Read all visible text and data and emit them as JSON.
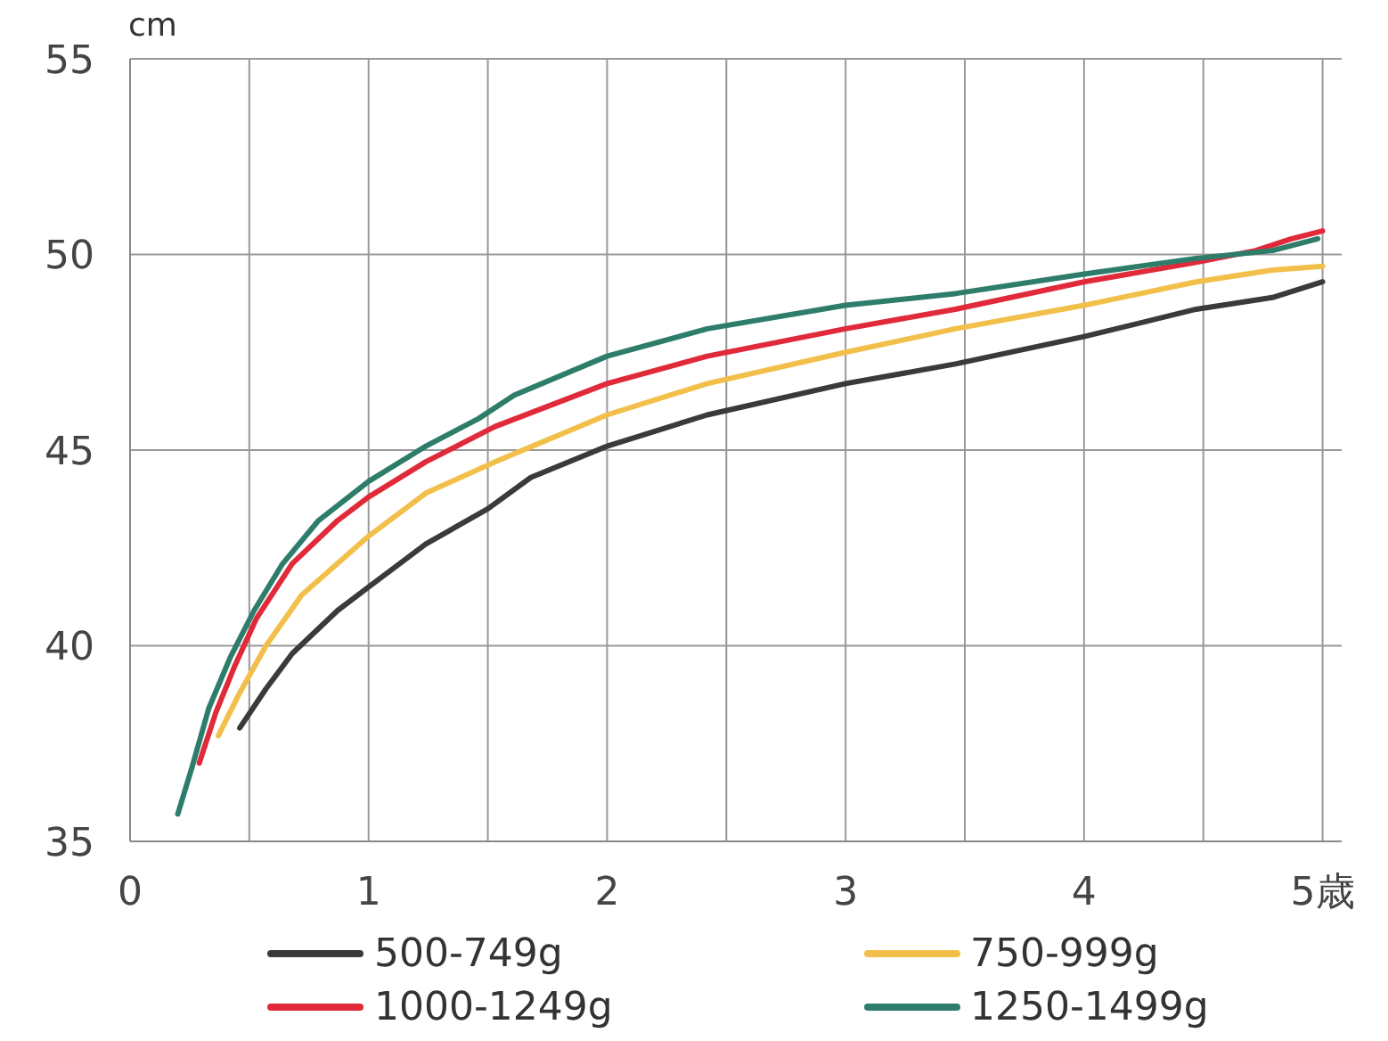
{
  "chart_data": {
    "type": "line",
    "ylabel": "cm",
    "xlim": [
      0,
      5.08
    ],
    "ylim": [
      35,
      55
    ],
    "xticks": [
      0,
      {
        "value": 0.5,
        "label": null
      },
      1,
      {
        "value": 1.5,
        "label": null
      },
      2,
      {
        "value": 2.5,
        "label": null
      },
      3,
      {
        "value": 3.5,
        "label": null
      },
      4,
      {
        "value": 4.5,
        "label": null
      },
      {
        "value": 5,
        "label": "5歳"
      }
    ],
    "yticks": [
      35,
      40,
      45,
      50,
      55
    ],
    "grid": true,
    "legend": "bottom",
    "marker": "none",
    "line_style": "solid",
    "series": [
      {
        "name": "500-749g",
        "color": "#3a3a3a",
        "x": [
          0.46,
          0.57,
          0.68,
          0.87,
          1.0,
          1.24,
          1.5,
          1.68,
          2.0,
          2.42,
          3.0,
          3.46,
          4.0,
          4.47,
          4.79,
          5.0
        ],
        "values": [
          37.9,
          38.9,
          39.8,
          40.9,
          41.5,
          42.6,
          43.5,
          44.3,
          45.1,
          45.9,
          46.7,
          47.2,
          47.9,
          48.6,
          48.9,
          49.3
        ]
      },
      {
        "name": "750-999g",
        "color": "#f2c04a",
        "x": [
          0.37,
          0.46,
          0.57,
          0.72,
          1.0,
          1.24,
          1.53,
          2.0,
          2.42,
          3.0,
          3.46,
          4.0,
          4.47,
          4.79,
          5.0
        ],
        "values": [
          37.7,
          38.8,
          40.0,
          41.3,
          42.8,
          43.9,
          44.7,
          45.9,
          46.7,
          47.5,
          48.1,
          48.7,
          49.3,
          49.6,
          49.7
        ]
      },
      {
        "name": "1000-1249g",
        "color": "#e02a3a",
        "x": [
          0.29,
          0.36,
          0.44,
          0.53,
          0.68,
          0.87,
          1.0,
          1.24,
          1.53,
          2.0,
          2.42,
          3.0,
          3.46,
          4.0,
          4.47,
          4.72,
          4.87,
          5.0
        ],
        "values": [
          37.0,
          38.3,
          39.5,
          40.7,
          42.1,
          43.2,
          43.8,
          44.7,
          45.6,
          46.7,
          47.4,
          48.1,
          48.6,
          49.3,
          49.8,
          50.1,
          50.4,
          50.6
        ]
      },
      {
        "name": "1250-1499g",
        "color": "#2e7d6a",
        "x": [
          0.2,
          0.26,
          0.33,
          0.42,
          0.52,
          0.64,
          0.79,
          1.0,
          1.24,
          1.46,
          1.61,
          2.0,
          2.42,
          3.0,
          3.46,
          4.0,
          4.47,
          4.79,
          4.98
        ],
        "values": [
          35.7,
          36.9,
          38.4,
          39.7,
          40.9,
          42.1,
          43.2,
          44.2,
          45.1,
          45.8,
          46.4,
          47.4,
          48.1,
          48.7,
          49.0,
          49.5,
          49.9,
          50.1,
          50.4
        ]
      }
    ]
  }
}
